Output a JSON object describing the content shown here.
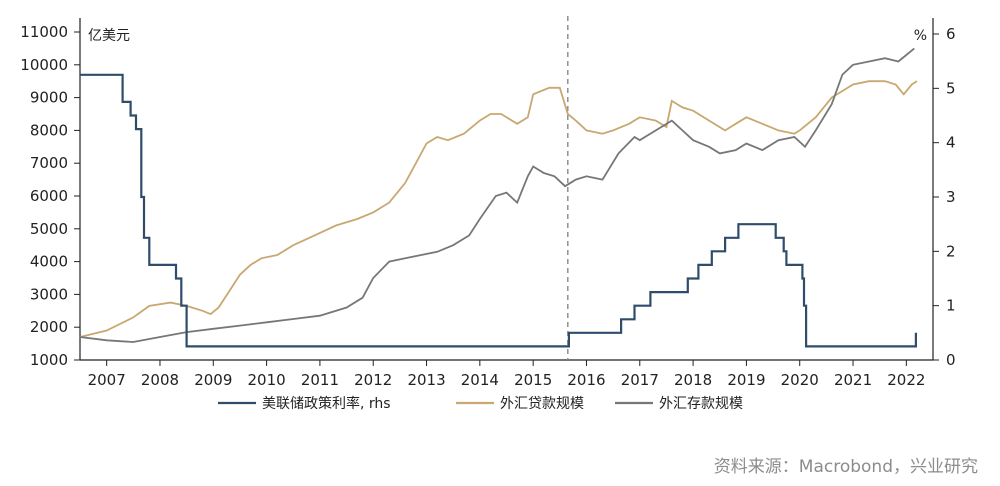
{
  "chart_data": {
    "type": "line",
    "y_left_unit": "亿美元",
    "y_right_unit": "%",
    "ylim_left": [
      1000,
      11000
    ],
    "yticks_left": [
      1000,
      2000,
      3000,
      4000,
      5000,
      6000,
      7000,
      8000,
      9000,
      10000,
      11000
    ],
    "ylim_right": [
      0,
      6
    ],
    "yticks_right": [
      0,
      1,
      2,
      3,
      4,
      5,
      6
    ],
    "xlim": [
      2006.5,
      2022.5
    ],
    "x_labels": [
      {
        "x": 2007,
        "label": "2007"
      },
      {
        "x": 2008,
        "label": "2008"
      },
      {
        "x": 2009,
        "label": "2009"
      },
      {
        "x": 2010,
        "label": "2010"
      },
      {
        "x": 2011,
        "label": "2011"
      },
      {
        "x": 2012,
        "label": "2012"
      },
      {
        "x": 2013,
        "label": "2013"
      },
      {
        "x": 2014,
        "label": "2014"
      },
      {
        "x": 2015,
        "label": "2015"
      },
      {
        "x": 2016,
        "label": "2016"
      },
      {
        "x": 2017,
        "label": "2017"
      },
      {
        "x": 2018,
        "label": "2018"
      },
      {
        "x": 2019,
        "label": "2019"
      },
      {
        "x": 2020,
        "label": "2020"
      },
      {
        "x": 2021,
        "label": "2021"
      },
      {
        "x": 2022,
        "label": "2022"
      }
    ],
    "vline_x": 2015.65,
    "series": [
      {
        "name": "美联储政策利率, rhs",
        "axis": "right",
        "color": "#2f4d6b",
        "step": true,
        "points": [
          [
            2006.5,
            5.25
          ],
          [
            2007.2,
            5.25
          ],
          [
            2007.3,
            4.75
          ],
          [
            2007.45,
            4.5
          ],
          [
            2007.55,
            4.25
          ],
          [
            2007.65,
            3.0
          ],
          [
            2007.7,
            2.25
          ],
          [
            2007.8,
            1.75
          ],
          [
            2008.3,
            1.5
          ],
          [
            2008.4,
            1.0
          ],
          [
            2008.5,
            0.25
          ],
          [
            2015.65,
            0.25
          ],
          [
            2015.67,
            0.5
          ],
          [
            2016.6,
            0.5
          ],
          [
            2016.65,
            0.75
          ],
          [
            2016.9,
            1.0
          ],
          [
            2017.2,
            1.25
          ],
          [
            2017.55,
            1.25
          ],
          [
            2017.9,
            1.5
          ],
          [
            2018.1,
            1.75
          ],
          [
            2018.35,
            2.0
          ],
          [
            2018.6,
            2.25
          ],
          [
            2018.85,
            2.5
          ],
          [
            2019.45,
            2.5
          ],
          [
            2019.55,
            2.25
          ],
          [
            2019.7,
            2.0
          ],
          [
            2019.75,
            1.75
          ],
          [
            2020.05,
            1.5
          ],
          [
            2020.08,
            1.0
          ],
          [
            2020.12,
            0.25
          ],
          [
            2022.15,
            0.25
          ],
          [
            2022.18,
            0.5
          ]
        ]
      },
      {
        "name": "外汇贷款规模",
        "axis": "left",
        "color": "#c8a870",
        "step": false,
        "points": [
          [
            2006.5,
            1700
          ],
          [
            2007.0,
            1900
          ],
          [
            2007.5,
            2300
          ],
          [
            2007.8,
            2650
          ],
          [
            2008.2,
            2750
          ],
          [
            2008.5,
            2650
          ],
          [
            2008.8,
            2500
          ],
          [
            2008.95,
            2400
          ],
          [
            2009.1,
            2600
          ],
          [
            2009.3,
            3100
          ],
          [
            2009.5,
            3600
          ],
          [
            2009.7,
            3900
          ],
          [
            2009.9,
            4100
          ],
          [
            2010.2,
            4200
          ],
          [
            2010.5,
            4500
          ],
          [
            2010.9,
            4800
          ],
          [
            2011.3,
            5100
          ],
          [
            2011.7,
            5300
          ],
          [
            2012.0,
            5500
          ],
          [
            2012.3,
            5800
          ],
          [
            2012.6,
            6400
          ],
          [
            2012.8,
            7000
          ],
          [
            2013.0,
            7600
          ],
          [
            2013.2,
            7800
          ],
          [
            2013.4,
            7700
          ],
          [
            2013.7,
            7900
          ],
          [
            2014.0,
            8300
          ],
          [
            2014.2,
            8500
          ],
          [
            2014.4,
            8500
          ],
          [
            2014.7,
            8200
          ],
          [
            2014.9,
            8400
          ],
          [
            2015.0,
            9100
          ],
          [
            2015.3,
            9300
          ],
          [
            2015.5,
            9300
          ],
          [
            2015.65,
            8500
          ],
          [
            2015.8,
            8300
          ],
          [
            2016.0,
            8000
          ],
          [
            2016.3,
            7900
          ],
          [
            2016.5,
            8000
          ],
          [
            2016.8,
            8200
          ],
          [
            2017.0,
            8400
          ],
          [
            2017.3,
            8300
          ],
          [
            2017.5,
            8100
          ],
          [
            2017.6,
            8900
          ],
          [
            2017.8,
            8700
          ],
          [
            2018.0,
            8600
          ],
          [
            2018.3,
            8300
          ],
          [
            2018.6,
            8000
          ],
          [
            2018.8,
            8200
          ],
          [
            2019.0,
            8400
          ],
          [
            2019.3,
            8200
          ],
          [
            2019.6,
            8000
          ],
          [
            2019.9,
            7900
          ],
          [
            2020.0,
            8000
          ],
          [
            2020.3,
            8400
          ],
          [
            2020.6,
            9000
          ],
          [
            2020.8,
            9200
          ],
          [
            2021.0,
            9400
          ],
          [
            2021.3,
            9500
          ],
          [
            2021.6,
            9500
          ],
          [
            2021.8,
            9400
          ],
          [
            2021.95,
            9100
          ],
          [
            2022.1,
            9400
          ],
          [
            2022.2,
            9500
          ]
        ]
      },
      {
        "name": "外汇存款规模",
        "axis": "left",
        "color": "#777777",
        "step": false,
        "points": [
          [
            2006.5,
            1700
          ],
          [
            2007.0,
            1600
          ],
          [
            2007.5,
            1550
          ],
          [
            2008.0,
            1700
          ],
          [
            2008.5,
            1850
          ],
          [
            2009.0,
            1950
          ],
          [
            2009.5,
            2050
          ],
          [
            2010.0,
            2150
          ],
          [
            2010.5,
            2250
          ],
          [
            2011.0,
            2350
          ],
          [
            2011.5,
            2600
          ],
          [
            2011.8,
            2900
          ],
          [
            2012.0,
            3500
          ],
          [
            2012.3,
            4000
          ],
          [
            2012.6,
            4100
          ],
          [
            2012.9,
            4200
          ],
          [
            2013.2,
            4300
          ],
          [
            2013.5,
            4500
          ],
          [
            2013.8,
            4800
          ],
          [
            2014.0,
            5300
          ],
          [
            2014.3,
            6000
          ],
          [
            2014.5,
            6100
          ],
          [
            2014.7,
            5800
          ],
          [
            2014.9,
            6600
          ],
          [
            2015.0,
            6900
          ],
          [
            2015.2,
            6700
          ],
          [
            2015.4,
            6600
          ],
          [
            2015.6,
            6300
          ],
          [
            2015.8,
            6500
          ],
          [
            2016.0,
            6600
          ],
          [
            2016.3,
            6500
          ],
          [
            2016.6,
            7300
          ],
          [
            2016.9,
            7800
          ],
          [
            2017.0,
            7700
          ],
          [
            2017.3,
            8000
          ],
          [
            2017.6,
            8300
          ],
          [
            2017.8,
            8000
          ],
          [
            2018.0,
            7700
          ],
          [
            2018.3,
            7500
          ],
          [
            2018.5,
            7300
          ],
          [
            2018.8,
            7400
          ],
          [
            2019.0,
            7600
          ],
          [
            2019.3,
            7400
          ],
          [
            2019.6,
            7700
          ],
          [
            2019.9,
            7800
          ],
          [
            2020.1,
            7500
          ],
          [
            2020.3,
            8000
          ],
          [
            2020.6,
            8800
          ],
          [
            2020.8,
            9700
          ],
          [
            2021.0,
            10000
          ],
          [
            2021.3,
            10100
          ],
          [
            2021.6,
            10200
          ],
          [
            2021.85,
            10100
          ],
          [
            2022.0,
            10300
          ],
          [
            2022.15,
            10500
          ]
        ]
      }
    ]
  },
  "source": "资料来源：Macrobond，兴业研究"
}
